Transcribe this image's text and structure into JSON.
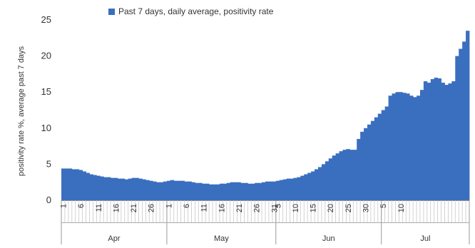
{
  "chart_data": {
    "type": "area",
    "title": "",
    "xlabel": "",
    "ylabel": "positivity rate %, average past 7 days",
    "ylim": [
      0,
      25
    ],
    "yticks": [
      0,
      5,
      10,
      15,
      20,
      25
    ],
    "grid": false,
    "legend_position": "top",
    "color": "#3a6fbf",
    "series": [
      {
        "name": "Past 7 days, daily average, positivity rate",
        "start_date": "Apr 1",
        "values": [
          4.4,
          4.4,
          4.4,
          4.3,
          4.3,
          4.2,
          4.0,
          3.8,
          3.6,
          3.5,
          3.4,
          3.3,
          3.2,
          3.2,
          3.1,
          3.1,
          3.0,
          3.0,
          2.9,
          3.0,
          3.1,
          3.1,
          3.0,
          2.9,
          2.8,
          2.7,
          2.6,
          2.5,
          2.5,
          2.6,
          2.7,
          2.8,
          2.7,
          2.7,
          2.7,
          2.6,
          2.6,
          2.5,
          2.4,
          2.4,
          2.3,
          2.3,
          2.2,
          2.2,
          2.2,
          2.3,
          2.3,
          2.4,
          2.5,
          2.5,
          2.5,
          2.4,
          2.4,
          2.3,
          2.3,
          2.4,
          2.4,
          2.5,
          2.6,
          2.6,
          2.6,
          2.7,
          2.8,
          2.9,
          3.0,
          3.0,
          3.1,
          3.2,
          3.4,
          3.6,
          3.8,
          4.0,
          4.3,
          4.6,
          5.0,
          5.4,
          5.8,
          6.2,
          6.5,
          6.8,
          7.0,
          7.1,
          7.0,
          7.0,
          8.5,
          9.5,
          10.0,
          10.5,
          11.0,
          11.5,
          12.0,
          12.5,
          13.0,
          14.5,
          14.8,
          15.0,
          15.0,
          14.9,
          14.8,
          14.5,
          14.3,
          14.5,
          15.3,
          16.5,
          16.3,
          16.8,
          17.0,
          16.9,
          16.3,
          16.0,
          16.2,
          16.5,
          20.0,
          21.0,
          22.0,
          23.5
        ]
      }
    ],
    "x_tick_labels": [
      "1",
      "6",
      "11",
      "16",
      "21",
      "26",
      "1",
      "6",
      "11",
      "16",
      "21",
      "26",
      "31",
      "5",
      "10",
      "15",
      "20",
      "25",
      "30",
      "5",
      "10"
    ],
    "months": [
      "Apr",
      "May",
      "Jun",
      "Jul"
    ]
  }
}
